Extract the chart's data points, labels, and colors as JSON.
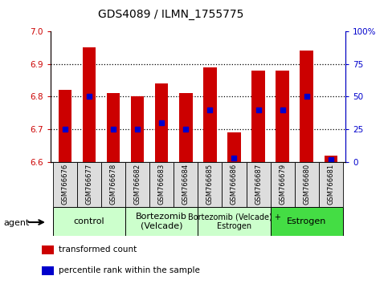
{
  "title": "GDS4089 / ILMN_1755775",
  "samples": [
    "GSM766676",
    "GSM766677",
    "GSM766678",
    "GSM766682",
    "GSM766683",
    "GSM766684",
    "GSM766685",
    "GSM766686",
    "GSM766687",
    "GSM766679",
    "GSM766680",
    "GSM766681"
  ],
  "transformed_count": [
    6.82,
    6.95,
    6.81,
    6.8,
    6.84,
    6.81,
    6.89,
    6.69,
    6.88,
    6.88,
    6.94,
    6.62
  ],
  "percentile_rank": [
    25,
    50,
    25,
    25,
    30,
    25,
    40,
    3,
    40,
    40,
    50,
    2
  ],
  "ylim_left": [
    6.6,
    7.0
  ],
  "ylim_right": [
    0,
    100
  ],
  "yticks_left": [
    6.6,
    6.7,
    6.8,
    6.9,
    7.0
  ],
  "yticks_right": [
    0,
    25,
    50,
    75,
    100
  ],
  "ytick_labels_right": [
    "0",
    "25",
    "50",
    "75",
    "100%"
  ],
  "bar_color": "#cc0000",
  "percentile_color": "#0000cc",
  "bar_bottom": 6.6,
  "groups": [
    {
      "label": "control",
      "indices": [
        0,
        1,
        2
      ],
      "color": "#ccffcc",
      "fontsize": 8
    },
    {
      "label": "Bortezomib\n(Velcade)",
      "indices": [
        3,
        4,
        5
      ],
      "color": "#ccffcc",
      "fontsize": 8
    },
    {
      "label": "Bortezomib (Velcade) +\nEstrogen",
      "indices": [
        6,
        7,
        8
      ],
      "color": "#ccffcc",
      "fontsize": 7
    },
    {
      "label": "Estrogen",
      "indices": [
        9,
        10,
        11
      ],
      "color": "#44dd44",
      "fontsize": 8
    }
  ],
  "legend_items": [
    {
      "color": "#cc0000",
      "label": "transformed count"
    },
    {
      "color": "#0000cc",
      "label": "percentile rank within the sample"
    }
  ],
  "agent_label": "agent",
  "bar_width": 0.55,
  "grid_yticks": [
    6.7,
    6.8,
    6.9
  ]
}
